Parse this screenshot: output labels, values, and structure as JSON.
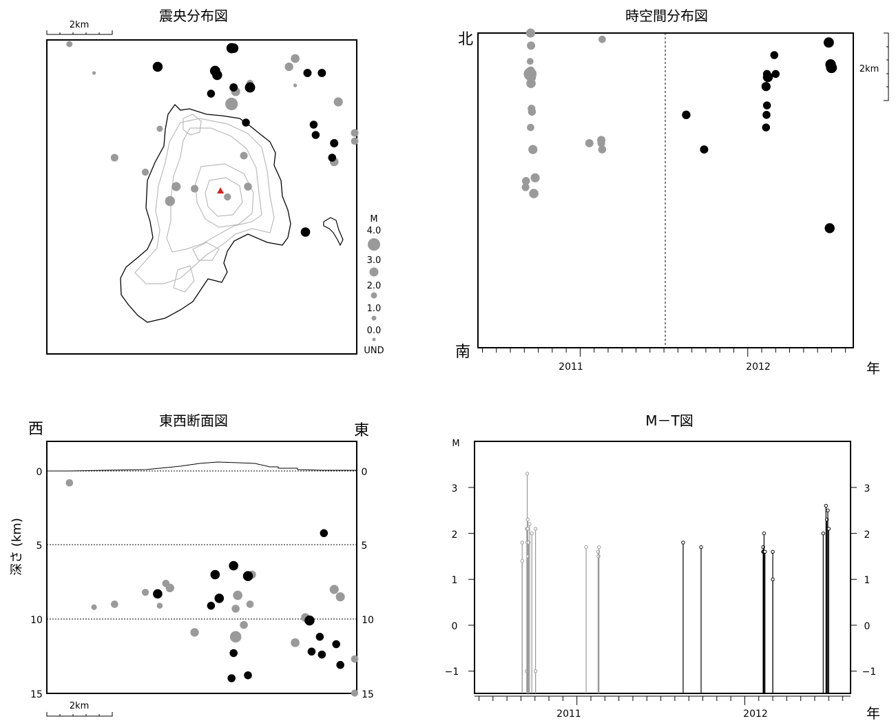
{
  "colors": {
    "older": "#9a9a9a",
    "recent": "#000000",
    "summit": "#e02020",
    "contour": "#b8b8b8"
  },
  "epicenter": {
    "title": "震央分布図",
    "scale": "2km",
    "legend": {
      "title": "M",
      "labels": [
        "4.0",
        "3.0",
        "2.0",
        "1.0",
        "0.0",
        "UND"
      ]
    }
  },
  "spacetime": {
    "title": "時空間分布図",
    "north": "北",
    "south": "南",
    "scale": "2km",
    "xunit": "年",
    "years": [
      "2011",
      "2012"
    ]
  },
  "section": {
    "title": "東西断面図",
    "west": "西",
    "east": "東",
    "ylabel": "深さ (km)",
    "scale": "2km",
    "ticks": [
      "0",
      "5",
      "10",
      "15"
    ]
  },
  "mt": {
    "title": "M－T図",
    "ylabel": "M",
    "xunit": "年",
    "years": [
      "2011",
      "2012"
    ],
    "ticks": [
      "3",
      "2",
      "1",
      "0",
      "−1"
    ]
  },
  "chart_data": [
    {
      "type": "scatter",
      "title": "震央分布図",
      "note": "epicenter map; points in km east / north of map SW corner",
      "xlim": [
        0,
        15.1
      ],
      "ylim": [
        0,
        15.2
      ],
      "series": [
        {
          "group": "older",
          "points": [
            [
              1.1,
              15.0,
              1.0
            ],
            [
              2.3,
              13.6,
              0.1
            ],
            [
              9.2,
              12.7,
              2.0
            ],
            [
              9.0,
              12.1,
              3.2
            ],
            [
              9.9,
              13.1,
              1.3
            ],
            [
              12.1,
              14.3,
              1.9
            ],
            [
              11.8,
              13.9,
              1.8
            ],
            [
              12.1,
              13.0,
              0.1
            ],
            [
              14.2,
              12.2,
              2.0
            ],
            [
              15.0,
              10.7,
              1.5
            ],
            [
              15.0,
              10.3,
              1.4
            ],
            [
              14.0,
              9.3,
              1.9
            ],
            [
              9.6,
              9.6,
              1.5
            ],
            [
              5.5,
              10.9,
              1.0
            ],
            [
              4.8,
              8.8,
              1.3
            ],
            [
              3.3,
              9.5,
              1.5
            ],
            [
              6.3,
              8.1,
              2.0
            ],
            [
              7.2,
              8.0,
              1.5
            ],
            [
              9.8,
              8.1,
              1.6
            ],
            [
              8.8,
              7.6,
              1.3
            ],
            [
              6.0,
              7.4,
              2.3
            ]
          ]
        },
        {
          "group": "recent",
          "points": [
            [
              9.1,
              14.8,
              2.2
            ],
            [
              9.0,
              14.8,
              2.4
            ],
            [
              5.4,
              13.9,
              2.3
            ],
            [
              8.2,
              13.7,
              2.4
            ],
            [
              8.3,
              13.5,
              2.3
            ],
            [
              12.7,
              13.6,
              1.7
            ],
            [
              13.4,
              13.6,
              1.7
            ],
            [
              9.1,
              12.9,
              1.7
            ],
            [
              9.9,
              12.9,
              2.4
            ],
            [
              8.0,
              12.6,
              1.6
            ],
            [
              9.7,
              11.2,
              1.6
            ],
            [
              13.0,
              11.1,
              1.6
            ],
            [
              13.1,
              10.6,
              1.6
            ],
            [
              14.0,
              10.2,
              1.7
            ],
            [
              13.9,
              9.5,
              1.6
            ],
            [
              12.6,
              5.9,
              2.1
            ]
          ]
        }
      ]
    },
    {
      "type": "scatter",
      "title": "時空間分布図",
      "xlabel": "年",
      "ylabel": "南–北",
      "xlim": [
        2010.39,
        2012.63
      ],
      "series": [
        {
          "group": "older",
          "points": [
            [
              "2010-09-15",
              1.0,
              2.0
            ],
            [
              "2010-09-16",
              0.96,
              1.7
            ],
            [
              "2010-09-14",
              0.91,
              1.2
            ],
            [
              "2010-09-15",
              0.88,
              1.8
            ],
            [
              "2010-09-14",
              0.87,
              3.3
            ],
            [
              "2010-09-16",
              0.86,
              2.3
            ],
            [
              "2010-09-16",
              0.84,
              2.1
            ],
            [
              "2010-09-17",
              0.76,
              1.5
            ],
            [
              "2010-09-18",
              0.75,
              1.6
            ],
            [
              "2010-09-15",
              0.7,
              1.4
            ],
            [
              "2010-09-20",
              0.63,
              2.0
            ],
            [
              "2011-01-21",
              0.65,
              1.7
            ],
            [
              "2011-02-16",
              0.66,
              1.7
            ],
            [
              "2011-02-18",
              0.63,
              1.6
            ],
            [
              "2011-02-16",
              0.65,
              1.5
            ],
            [
              "2010-09-05",
              0.53,
              1.6
            ],
            [
              "2010-09-04",
              0.51,
              1.5
            ],
            [
              "2010-09-25",
              0.54,
              2.0
            ],
            [
              "2010-09-22",
              0.49,
              2.1
            ],
            [
              "2011-02-18",
              0.98,
              1.4
            ]
          ]
        },
        {
          "group": "recent",
          "points": [
            [
              "2011-08-20",
              0.74,
              1.8
            ],
            [
              "2011-09-28",
              0.63,
              1.7
            ],
            [
              "2012-02-10",
              0.83,
              2.0
            ],
            [
              "2012-02-12",
              0.87,
              1.6
            ],
            [
              "2012-02-14",
              0.86,
              2.3
            ],
            [
              "2012-02-12",
              0.77,
              1.6
            ],
            [
              "2012-02-11",
              0.74,
              1.6
            ],
            [
              "2012-02-10",
              0.7,
              1.6
            ],
            [
              "2012-02-28",
              0.93,
              1.6
            ],
            [
              "2012-03-02",
              0.87,
              1.6
            ],
            [
              "2012-06-26",
              0.97,
              2.4
            ],
            [
              "2012-06-30",
              0.9,
              2.5
            ],
            [
              "2012-07-02",
              0.89,
              2.6
            ],
            [
              "2012-06-28",
              0.38,
              2.3
            ]
          ]
        }
      ]
    },
    {
      "type": "scatter",
      "title": "東西断面図",
      "xlabel": "西–東",
      "ylabel": "深さ (km)",
      "ylim": [
        15,
        -1.8
      ],
      "series": [
        {
          "group": "older",
          "points": [
            [
              1.1,
              0.8,
              1.4
            ],
            [
              2.3,
              9.2,
              0.8
            ],
            [
              3.3,
              9.0,
              1.4
            ],
            [
              4.8,
              8.2,
              1.3
            ],
            [
              5.5,
              9.1,
              0.9
            ],
            [
              5.8,
              7.6,
              1.4
            ],
            [
              6.0,
              7.9,
              1.8
            ],
            [
              7.2,
              10.9,
              1.8
            ],
            [
              9.2,
              9.3,
              1.6
            ],
            [
              9.2,
              11.2,
              2.8
            ],
            [
              9.3,
              8.4,
              2.1
            ],
            [
              9.6,
              10.4,
              1.6
            ],
            [
              9.9,
              9.0,
              1.4
            ],
            [
              10.0,
              7.0,
              1.6
            ],
            [
              12.1,
              11.6,
              1.9
            ],
            [
              12.6,
              9.9,
              1.9
            ],
            [
              14.0,
              8.0,
              2.0
            ],
            [
              14.3,
              8.5,
              2.0
            ],
            [
              15.0,
              12.7,
              1.4
            ],
            [
              15.0,
              15.0,
              1.3
            ]
          ]
        },
        {
          "group": "recent",
          "points": [
            [
              5.4,
              8.3,
              2.1
            ],
            [
              8.2,
              7.0,
              2.1
            ],
            [
              8.4,
              8.6,
              2.1
            ],
            [
              8.0,
              9.1,
              1.6
            ],
            [
              9.1,
              6.4,
              2.1
            ],
            [
              9.8,
              7.1,
              2.3
            ],
            [
              9.1,
              12.3,
              1.6
            ],
            [
              9.0,
              14.0,
              1.6
            ],
            [
              9.8,
              13.8,
              1.6
            ],
            [
              12.8,
              10.1,
              2.3
            ],
            [
              12.9,
              12.2,
              1.6
            ],
            [
              13.4,
              12.4,
              1.6
            ],
            [
              13.3,
              11.2,
              1.6
            ],
            [
              13.5,
              4.2,
              1.6
            ],
            [
              14.1,
              11.7,
              1.6
            ],
            [
              14.3,
              13.1,
              1.6
            ]
          ]
        }
      ]
    },
    {
      "type": "line",
      "title": "M－T図",
      "xlabel": "年",
      "ylabel": "M",
      "xlim": [
        2010.39,
        2012.63
      ],
      "ylim": [
        -1.5,
        3.95
      ],
      "series": [
        {
          "group": "older",
          "points": [
            [
              "2010-09-04",
              1.8
            ],
            [
              "2010-09-04",
              1.4
            ],
            [
              "2010-09-14",
              -1.0
            ],
            [
              "2010-09-14",
              2.1
            ],
            [
              "2010-09-15",
              1.8
            ],
            [
              "2010-09-15",
              3.3
            ],
            [
              "2010-09-16",
              2.3
            ],
            [
              "2010-09-16",
              2.1
            ],
            [
              "2010-09-17",
              1.5
            ],
            [
              "2010-09-18",
              1.8
            ],
            [
              "2010-09-20",
              2.2
            ],
            [
              "2010-09-25",
              2.0
            ],
            [
              "2010-10-03",
              2.1
            ],
            [
              "2010-10-03",
              -1.0
            ],
            [
              "2011-01-21",
              1.7
            ],
            [
              "2011-02-16",
              1.6
            ],
            [
              "2011-02-17",
              1.5
            ],
            [
              "2011-02-18",
              1.7
            ]
          ]
        },
        {
          "group": "recent",
          "points": [
            [
              "2011-08-20",
              1.8
            ],
            [
              "2011-09-28",
              1.7
            ],
            [
              "2012-02-10",
              1.7
            ],
            [
              "2012-02-10",
              1.6
            ],
            [
              "2012-02-11",
              1.6
            ],
            [
              "2012-02-12",
              1.6
            ],
            [
              "2012-02-12",
              2.0
            ],
            [
              "2012-02-14",
              1.6
            ],
            [
              "2012-03-02",
              1.6
            ],
            [
              "2012-03-02",
              1.0
            ],
            [
              "2012-06-20",
              2.0
            ],
            [
              "2012-06-26",
              2.6
            ],
            [
              "2012-06-28",
              2.3
            ],
            [
              "2012-06-30",
              2.5
            ],
            [
              "2012-07-02",
              2.1
            ]
          ]
        }
      ]
    }
  ]
}
